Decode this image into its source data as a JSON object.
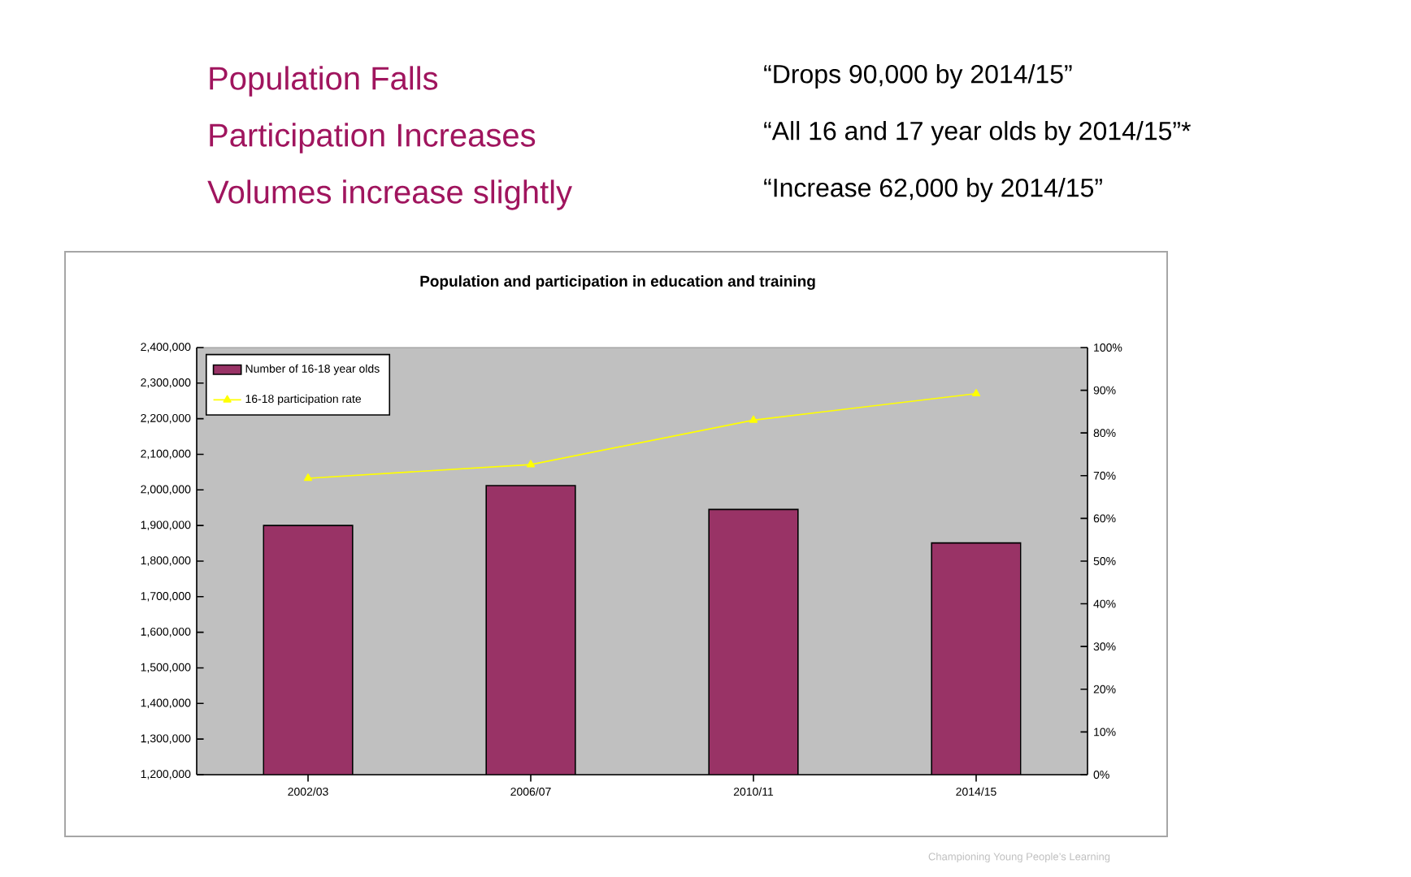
{
  "chart_data": {
    "type": "bar",
    "title": "Population and participation in education and training",
    "annotations": [
      "Population Falls",
      "Participation Increases",
      "Volumes increase slightly",
      "“Drops 90,000 by 2014/15”",
      "“All 16 and 17 year olds by 2014/15”*",
      "“Increase 62,000 by 2014/15”",
      "Championing Young People’s Learning"
    ],
    "categories": [
      "2002/03",
      "2006/07",
      "2010/11",
      "2014/15"
    ],
    "series": [
      {
        "name": "Number of 16-18 year olds",
        "color": "#993366",
        "values": [
          1900000,
          2012000,
          1945000,
          1851000
        ]
      },
      {
        "name": "16-18 participation rate",
        "type": "line",
        "axis": "y2",
        "color": "#ffff00",
        "values": [
          69.4,
          72.6,
          83.0,
          89.2
        ]
      }
    ],
    "ylim": [
      1200000,
      2400000
    ],
    "yticks": [
      {
        "value": 1200000,
        "label": "1,200,000"
      },
      {
        "value": 1300000,
        "label": "1,300,000"
      },
      {
        "value": 1400000,
        "label": "1,400,000"
      },
      {
        "value": 1500000,
        "label": "1,500,000"
      },
      {
        "value": 1600000,
        "label": "1,600,000"
      },
      {
        "value": 1700000,
        "label": "1,700,000"
      },
      {
        "value": 1800000,
        "label": "1,800,000"
      },
      {
        "value": 1900000,
        "label": "1,900,000"
      },
      {
        "value": 2000000,
        "label": "2,000,000"
      },
      {
        "value": 2100000,
        "label": "2,100,000"
      },
      {
        "value": 2200000,
        "label": "2,200,000"
      },
      {
        "value": 2300000,
        "label": "2,300,000"
      },
      {
        "value": 2400000,
        "label": "2,400,000"
      }
    ],
    "y2lim": [
      0,
      100
    ],
    "y2ticks": [
      {
        "value": 0,
        "label": "0%"
      },
      {
        "value": 10,
        "label": "10%"
      },
      {
        "value": 20,
        "label": "20%"
      },
      {
        "value": 30,
        "label": "30%"
      },
      {
        "value": 40,
        "label": "40%"
      },
      {
        "value": 50,
        "label": "50%"
      },
      {
        "value": 60,
        "label": "60%"
      },
      {
        "value": 70,
        "label": "70%"
      },
      {
        "value": 80,
        "label": "80%"
      },
      {
        "value": 90,
        "label": "90%"
      },
      {
        "value": 100,
        "label": "100%"
      }
    ],
    "legend": "top left",
    "marker": "triangle"
  }
}
